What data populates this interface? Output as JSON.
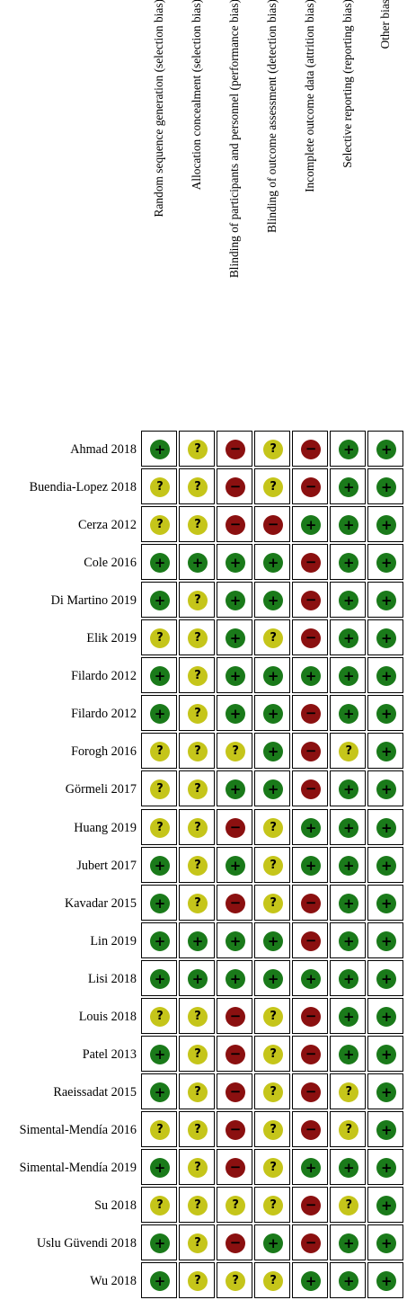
{
  "colors": {
    "low": "#1a7a1a",
    "unclear": "#c5c51a",
    "high": "#8b1010",
    "symbol_dark": "#000000"
  },
  "symbols": {
    "low": "+",
    "unclear": "?",
    "high": "−"
  },
  "chart_data": {
    "type": "table",
    "columns": [
      "Random sequence generation (selection bias)",
      "Allocation concealment (selection bias)",
      "Blinding of participants and personnel (performance bias)",
      "Blinding of outcome assessment (detection bias)",
      "Incomplete outcome data (attrition bias)",
      "Selective reporting (reporting bias)",
      "Other bias"
    ],
    "rows": [
      {
        "study": "Ahmad 2018",
        "ratings": [
          "low",
          "unclear",
          "high",
          "unclear",
          "high",
          "low",
          "low"
        ]
      },
      {
        "study": "Buendia-Lopez 2018",
        "ratings": [
          "unclear",
          "unclear",
          "high",
          "unclear",
          "high",
          "low",
          "low"
        ]
      },
      {
        "study": "Cerza 2012",
        "ratings": [
          "unclear",
          "unclear",
          "high",
          "high",
          "low",
          "low",
          "low"
        ]
      },
      {
        "study": "Cole 2016",
        "ratings": [
          "low",
          "low",
          "low",
          "low",
          "high",
          "low",
          "low"
        ]
      },
      {
        "study": "Di Martino 2019",
        "ratings": [
          "low",
          "unclear",
          "low",
          "low",
          "high",
          "low",
          "low"
        ]
      },
      {
        "study": "Elik 2019",
        "ratings": [
          "unclear",
          "unclear",
          "low",
          "unclear",
          "high",
          "low",
          "low"
        ]
      },
      {
        "study": "Filardo 2012",
        "ratings": [
          "low",
          "unclear",
          "low",
          "low",
          "low",
          "low",
          "low"
        ]
      },
      {
        "study": "Filardo 2012",
        "ratings": [
          "low",
          "unclear",
          "low",
          "low",
          "high",
          "low",
          "low"
        ]
      },
      {
        "study": "Forogh 2016",
        "ratings": [
          "unclear",
          "unclear",
          "unclear",
          "low",
          "high",
          "unclear",
          "low"
        ]
      },
      {
        "study": "Görmeli 2017",
        "ratings": [
          "unclear",
          "unclear",
          "low",
          "low",
          "high",
          "low",
          "low"
        ]
      },
      {
        "study": "Huang 2019",
        "ratings": [
          "unclear",
          "unclear",
          "high",
          "unclear",
          "low",
          "low",
          "low"
        ]
      },
      {
        "study": "Jubert 2017",
        "ratings": [
          "low",
          "unclear",
          "low",
          "unclear",
          "low",
          "low",
          "low"
        ]
      },
      {
        "study": "Kavadar 2015",
        "ratings": [
          "low",
          "unclear",
          "high",
          "unclear",
          "high",
          "low",
          "low"
        ]
      },
      {
        "study": "Lin 2019",
        "ratings": [
          "low",
          "low",
          "low",
          "low",
          "high",
          "low",
          "low"
        ]
      },
      {
        "study": "Lisi 2018",
        "ratings": [
          "low",
          "low",
          "low",
          "low",
          "low",
          "low",
          "low"
        ]
      },
      {
        "study": "Louis 2018",
        "ratings": [
          "unclear",
          "unclear",
          "high",
          "unclear",
          "high",
          "low",
          "low"
        ]
      },
      {
        "study": "Patel 2013",
        "ratings": [
          "low",
          "unclear",
          "high",
          "unclear",
          "high",
          "low",
          "low"
        ]
      },
      {
        "study": "Raeissadat 2015",
        "ratings": [
          "low",
          "unclear",
          "high",
          "unclear",
          "high",
          "unclear",
          "low"
        ]
      },
      {
        "study": "Simental-Mendía 2016",
        "ratings": [
          "unclear",
          "unclear",
          "high",
          "unclear",
          "high",
          "unclear",
          "low"
        ]
      },
      {
        "study": "Simental-Mendía 2019",
        "ratings": [
          "low",
          "unclear",
          "high",
          "unclear",
          "low",
          "low",
          "low"
        ]
      },
      {
        "study": "Su 2018",
        "ratings": [
          "unclear",
          "unclear",
          "unclear",
          "unclear",
          "high",
          "unclear",
          "low"
        ]
      },
      {
        "study": "Uslu Güvendi 2018",
        "ratings": [
          "low",
          "unclear",
          "high",
          "low",
          "high",
          "low",
          "low"
        ]
      },
      {
        "study": "Wu 2018",
        "ratings": [
          "low",
          "unclear",
          "unclear",
          "unclear",
          "low",
          "low",
          "low"
        ]
      }
    ]
  }
}
